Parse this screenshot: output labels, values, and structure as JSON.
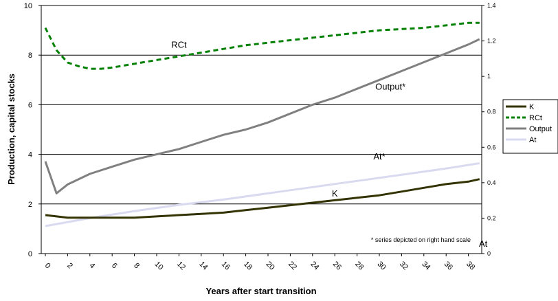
{
  "chart_data": {
    "type": "line",
    "title": "",
    "xlabel": "Years after start transition",
    "ylabel": "Production, capital stocks",
    "y2label": "At",
    "xlim": [
      0,
      39
    ],
    "ylim": [
      0,
      10
    ],
    "y2lim": [
      0,
      1.4
    ],
    "yticks": [
      "0",
      "2",
      "4",
      "6",
      "8",
      "10"
    ],
    "y2ticks": [
      "0",
      "0.2",
      "0.4",
      "0.6",
      "0.8",
      "1",
      "1.2",
      "1.4"
    ],
    "xticks": [
      "0",
      "2",
      "4",
      "6",
      "8",
      "10",
      "12",
      "14",
      "16",
      "18",
      "20",
      "22",
      "24",
      "26",
      "28",
      "30",
      "32",
      "34",
      "36",
      "38"
    ],
    "grid": "horizontal",
    "legend_position": "right",
    "series": [
      {
        "name": "K",
        "axis": "left",
        "color": "#333300",
        "style": "solid",
        "x": [
          0,
          2,
          4,
          6,
          8,
          10,
          12,
          14,
          16,
          18,
          20,
          22,
          24,
          26,
          28,
          30,
          32,
          34,
          36,
          38,
          39
        ],
        "values": [
          1.55,
          1.45,
          1.45,
          1.45,
          1.45,
          1.5,
          1.55,
          1.6,
          1.65,
          1.75,
          1.85,
          1.95,
          2.05,
          2.15,
          2.25,
          2.35,
          2.5,
          2.65,
          2.8,
          2.9,
          3.0
        ]
      },
      {
        "name": "RCt",
        "axis": "left",
        "color": "#008000",
        "style": "dashed",
        "x": [
          0,
          1,
          2,
          3,
          4,
          5,
          6,
          8,
          10,
          12,
          14,
          16,
          18,
          20,
          22,
          24,
          26,
          28,
          30,
          32,
          34,
          36,
          38,
          39
        ],
        "values": [
          9.1,
          8.2,
          7.7,
          7.55,
          7.45,
          7.45,
          7.5,
          7.65,
          7.8,
          7.95,
          8.1,
          8.25,
          8.4,
          8.5,
          8.6,
          8.7,
          8.8,
          8.9,
          9.0,
          9.05,
          9.1,
          9.2,
          9.3,
          9.3
        ]
      },
      {
        "name": "Output*",
        "axis": "right",
        "color": "#808080",
        "style": "solid",
        "x": [
          0,
          1,
          2,
          4,
          6,
          8,
          10,
          12,
          14,
          16,
          18,
          20,
          22,
          24,
          26,
          28,
          30,
          32,
          34,
          36,
          38,
          39
        ],
        "values": [
          0.52,
          0.34,
          0.39,
          0.45,
          0.49,
          0.53,
          0.56,
          0.59,
          0.63,
          0.67,
          0.7,
          0.74,
          0.79,
          0.84,
          0.88,
          0.93,
          0.98,
          1.03,
          1.08,
          1.13,
          1.18,
          1.21
        ]
      },
      {
        "name": "At",
        "axis": "right",
        "color": "#d9d9f0",
        "style": "solid",
        "x": [
          0,
          4,
          8,
          12,
          16,
          20,
          24,
          28,
          32,
          36,
          39
        ],
        "values": [
          0.155,
          0.2,
          0.24,
          0.275,
          0.305,
          0.34,
          0.375,
          0.41,
          0.445,
          0.48,
          0.51
        ]
      }
    ],
    "annotations": [
      {
        "text": "RCt",
        "x": 12,
        "axis": "left",
        "y": 8.3
      },
      {
        "text": "Output*",
        "x": 31,
        "axis": "left",
        "y": 6.6
      },
      {
        "text": "At*",
        "x": 30,
        "axis": "left",
        "y": 3.8
      },
      {
        "text": "K",
        "x": 26,
        "axis": "left",
        "y": 2.3
      }
    ],
    "note": "* series depicted on right hand scale",
    "legend": [
      {
        "label": "K",
        "series": 0
      },
      {
        "label": "RCt",
        "series": 1
      },
      {
        "label": "Output",
        "series": 2
      },
      {
        "label": "At",
        "series": 3
      }
    ]
  }
}
